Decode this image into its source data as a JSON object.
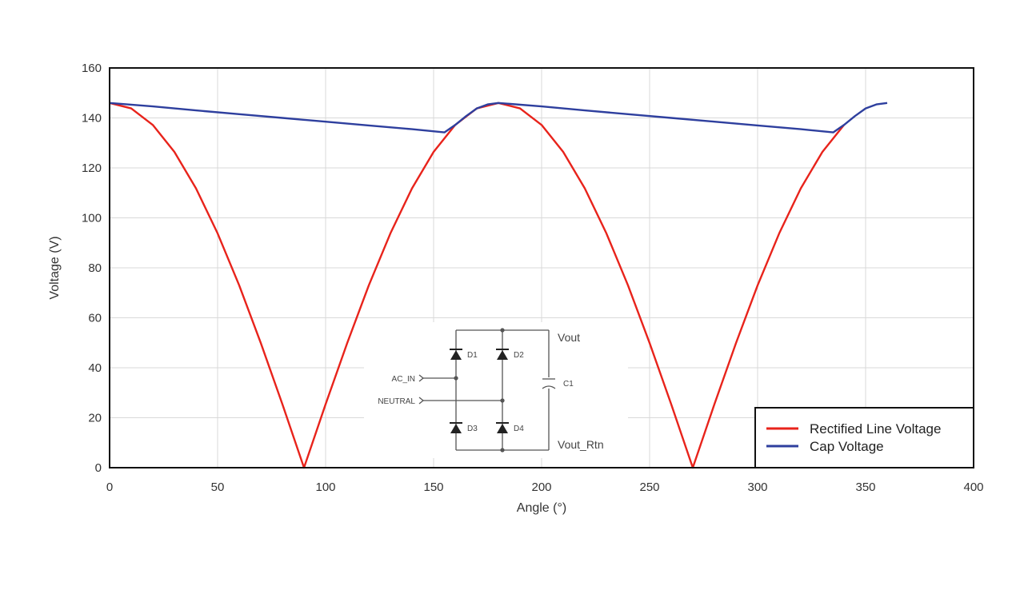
{
  "chart_data": {
    "type": "line",
    "title": "",
    "xlabel": "Angle (°)",
    "ylabel": "Voltage (V)",
    "xlim": [
      0,
      400
    ],
    "ylim": [
      0,
      160
    ],
    "xticks": [
      0,
      50,
      100,
      150,
      200,
      250,
      300,
      350,
      400
    ],
    "yticks": [
      0,
      20,
      40,
      60,
      80,
      100,
      120,
      140,
      160
    ],
    "grid": true,
    "legend_position": "bottom-right",
    "series": [
      {
        "name": "Rectified Line Voltage",
        "color": "#e8231b",
        "x": [
          0,
          10,
          20,
          30,
          40,
          50,
          60,
          70,
          80,
          90,
          100,
          110,
          120,
          130,
          140,
          150,
          160,
          170,
          180,
          190,
          200,
          210,
          220,
          230,
          240,
          250,
          260,
          270,
          280,
          290,
          300,
          310,
          320,
          330,
          340
        ],
        "y": [
          146.0,
          143.8,
          137.2,
          126.4,
          111.8,
          93.8,
          73.0,
          49.9,
          25.4,
          0,
          25.4,
          49.9,
          73.0,
          93.8,
          111.8,
          126.4,
          137.2,
          143.8,
          146.0,
          143.8,
          137.2,
          126.4,
          111.8,
          93.8,
          73.0,
          49.9,
          25.4,
          0,
          25.4,
          49.9,
          73.0,
          93.8,
          111.8,
          126.4,
          137.2
        ]
      },
      {
        "name": "Cap Voltage",
        "color": "#2e3f9e",
        "x": [
          0,
          20,
          40,
          60,
          80,
          100,
          120,
          140,
          155,
          160,
          165,
          170,
          175,
          180,
          200,
          220,
          240,
          260,
          280,
          300,
          320,
          335,
          340,
          345,
          350,
          355,
          360
        ],
        "y": [
          146.0,
          144.6,
          143.0,
          141.5,
          140.0,
          138.5,
          137.0,
          135.5,
          134.2,
          137.2,
          140.7,
          143.8,
          145.4,
          146.0,
          144.6,
          143.0,
          141.5,
          140.0,
          138.5,
          137.0,
          135.5,
          134.2,
          137.2,
          140.7,
          143.8,
          145.4,
          146.0
        ]
      }
    ]
  },
  "schematic": {
    "labels": {
      "vout": "Vout",
      "vout_rtn": "Vout_Rtn",
      "ac_in": "AC_IN",
      "neutral": "NEUTRAL",
      "d1": "D1",
      "d2": "D2",
      "d3": "D3",
      "d4": "D4",
      "c1": "C1"
    }
  },
  "colors": {
    "grid": "#d9d9d9",
    "frame": "#111111",
    "schematic_line": "#555555"
  }
}
